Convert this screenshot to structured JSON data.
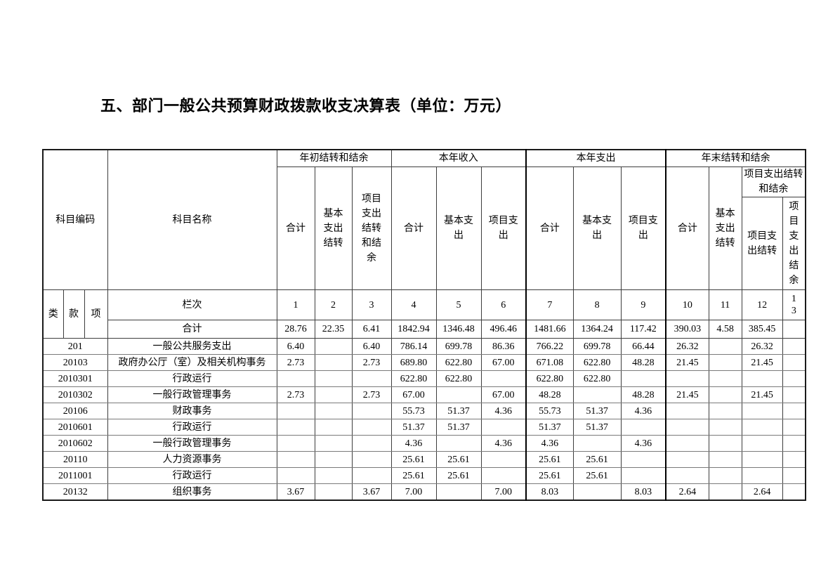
{
  "page": {
    "title": "五、部门一般公共预算财政拨款收支决算表（单位：万元）"
  },
  "table": {
    "header": {
      "code": "科目编码",
      "name": "科目名称",
      "code_parts": [
        "类",
        "款",
        "项"
      ],
      "lanci_label": "栏次",
      "groups": [
        {
          "label": "年初结转和结余",
          "cols": [
            "合计",
            "基本支出结转",
            "项目支出结转和结余"
          ]
        },
        {
          "label": "本年收入",
          "cols": [
            "合计",
            "基本支出",
            "项目支出"
          ]
        },
        {
          "label": "本年支出",
          "cols": [
            "合计",
            "基本支出",
            "项目支出"
          ]
        },
        {
          "label": "年末结转和结余",
          "cols": [
            "合计",
            "基本支出结转"
          ],
          "subgroup": {
            "label": "项目支出结转和结余",
            "cols": [
              "项目支出结转",
              "项目支出结余"
            ]
          }
        }
      ],
      "col_numbers": [
        "1",
        "2",
        "3",
        "4",
        "5",
        "6",
        "7",
        "8",
        "9",
        "10",
        "11",
        "12",
        "13"
      ]
    },
    "total_row": {
      "label": "合计",
      "values": [
        "28.76",
        "22.35",
        "6.41",
        "1842.94",
        "1346.48",
        "496.46",
        "1481.66",
        "1364.24",
        "117.42",
        "390.03",
        "4.58",
        "385.45",
        ""
      ]
    },
    "rows": [
      {
        "code": "201",
        "name": "一般公共服务支出",
        "indent": 0,
        "values": [
          "6.40",
          "",
          "6.40",
          "786.14",
          "699.78",
          "86.36",
          "766.22",
          "699.78",
          "66.44",
          "26.32",
          "",
          "26.32",
          ""
        ]
      },
      {
        "code": "20103",
        "name": "政府办公厅（室）及相关机构事务",
        "indent": 0,
        "values": [
          "2.73",
          "",
          "2.73",
          "689.80",
          "622.80",
          "67.00",
          "671.08",
          "622.80",
          "48.28",
          "21.45",
          "",
          "21.45",
          ""
        ]
      },
      {
        "code": "2010301",
        "name": "行政运行",
        "indent": 1,
        "values": [
          "",
          "",
          "",
          "622.80",
          "622.80",
          "",
          "622.80",
          "622.80",
          "",
          "",
          "",
          "",
          ""
        ]
      },
      {
        "code": "2010302",
        "name": "一般行政管理事务",
        "indent": 2,
        "values": [
          "2.73",
          "",
          "2.73",
          "67.00",
          "",
          "67.00",
          "48.28",
          "",
          "48.28",
          "21.45",
          "",
          "21.45",
          ""
        ]
      },
      {
        "code": "20106",
        "name": "财政事务",
        "indent": 0,
        "values": [
          "",
          "",
          "",
          "55.73",
          "51.37",
          "4.36",
          "55.73",
          "51.37",
          "4.36",
          "",
          "",
          "",
          ""
        ]
      },
      {
        "code": "2010601",
        "name": "行政运行",
        "indent": 1,
        "values": [
          "",
          "",
          "",
          "51.37",
          "51.37",
          "",
          "51.37",
          "51.37",
          "",
          "",
          "",
          "",
          ""
        ]
      },
      {
        "code": "2010602",
        "name": "一般行政管理事务",
        "indent": 2,
        "values": [
          "",
          "",
          "",
          "4.36",
          "",
          "4.36",
          "4.36",
          "",
          "4.36",
          "",
          "",
          "",
          ""
        ]
      },
      {
        "code": "20110",
        "name": "人力资源事务",
        "indent": 0,
        "values": [
          "",
          "",
          "",
          "25.61",
          "25.61",
          "",
          "25.61",
          "25.61",
          "",
          "",
          "",
          "",
          ""
        ]
      },
      {
        "code": "2011001",
        "name": "行政运行",
        "indent": 1,
        "values": [
          "",
          "",
          "",
          "25.61",
          "25.61",
          "",
          "25.61",
          "25.61",
          "",
          "",
          "",
          "",
          ""
        ]
      },
      {
        "code": "20132",
        "name": "组织事务",
        "indent": 0,
        "values": [
          "3.67",
          "",
          "3.67",
          "7.00",
          "",
          "7.00",
          "8.03",
          "",
          "8.03",
          "2.64",
          "",
          "2.64",
          ""
        ]
      }
    ]
  }
}
